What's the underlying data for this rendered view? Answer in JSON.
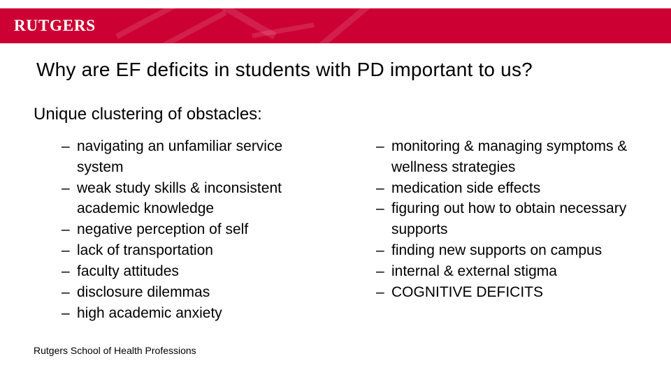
{
  "brand": {
    "name": "RUTGERS",
    "primary_color": "#cc0033",
    "text_color": "#ffffff"
  },
  "slide": {
    "title": "Why are EF deficits in students with PD important to us?",
    "subtitle": "Unique clustering of obstacles:",
    "title_fontsize": 28,
    "subtitle_fontsize": 24,
    "body_fontsize": 21,
    "text_color": "#000000",
    "background_color": "#ffffff"
  },
  "bullets_left": [
    "navigating an unfamiliar service system",
    "weak study skills & inconsistent academic knowledge",
    "negative perception of self",
    "lack of transportation",
    "faculty attitudes",
    "disclosure dilemmas",
    "high academic anxiety"
  ],
  "bullets_right": [
    "monitoring & managing symptoms & wellness strategies",
    "medication side effects",
    "figuring out how to obtain necessary supports",
    "finding new supports on campus",
    "internal & external stigma",
    "COGNITIVE DEFICITS"
  ],
  "footer": "Rutgers School of Health Professions"
}
